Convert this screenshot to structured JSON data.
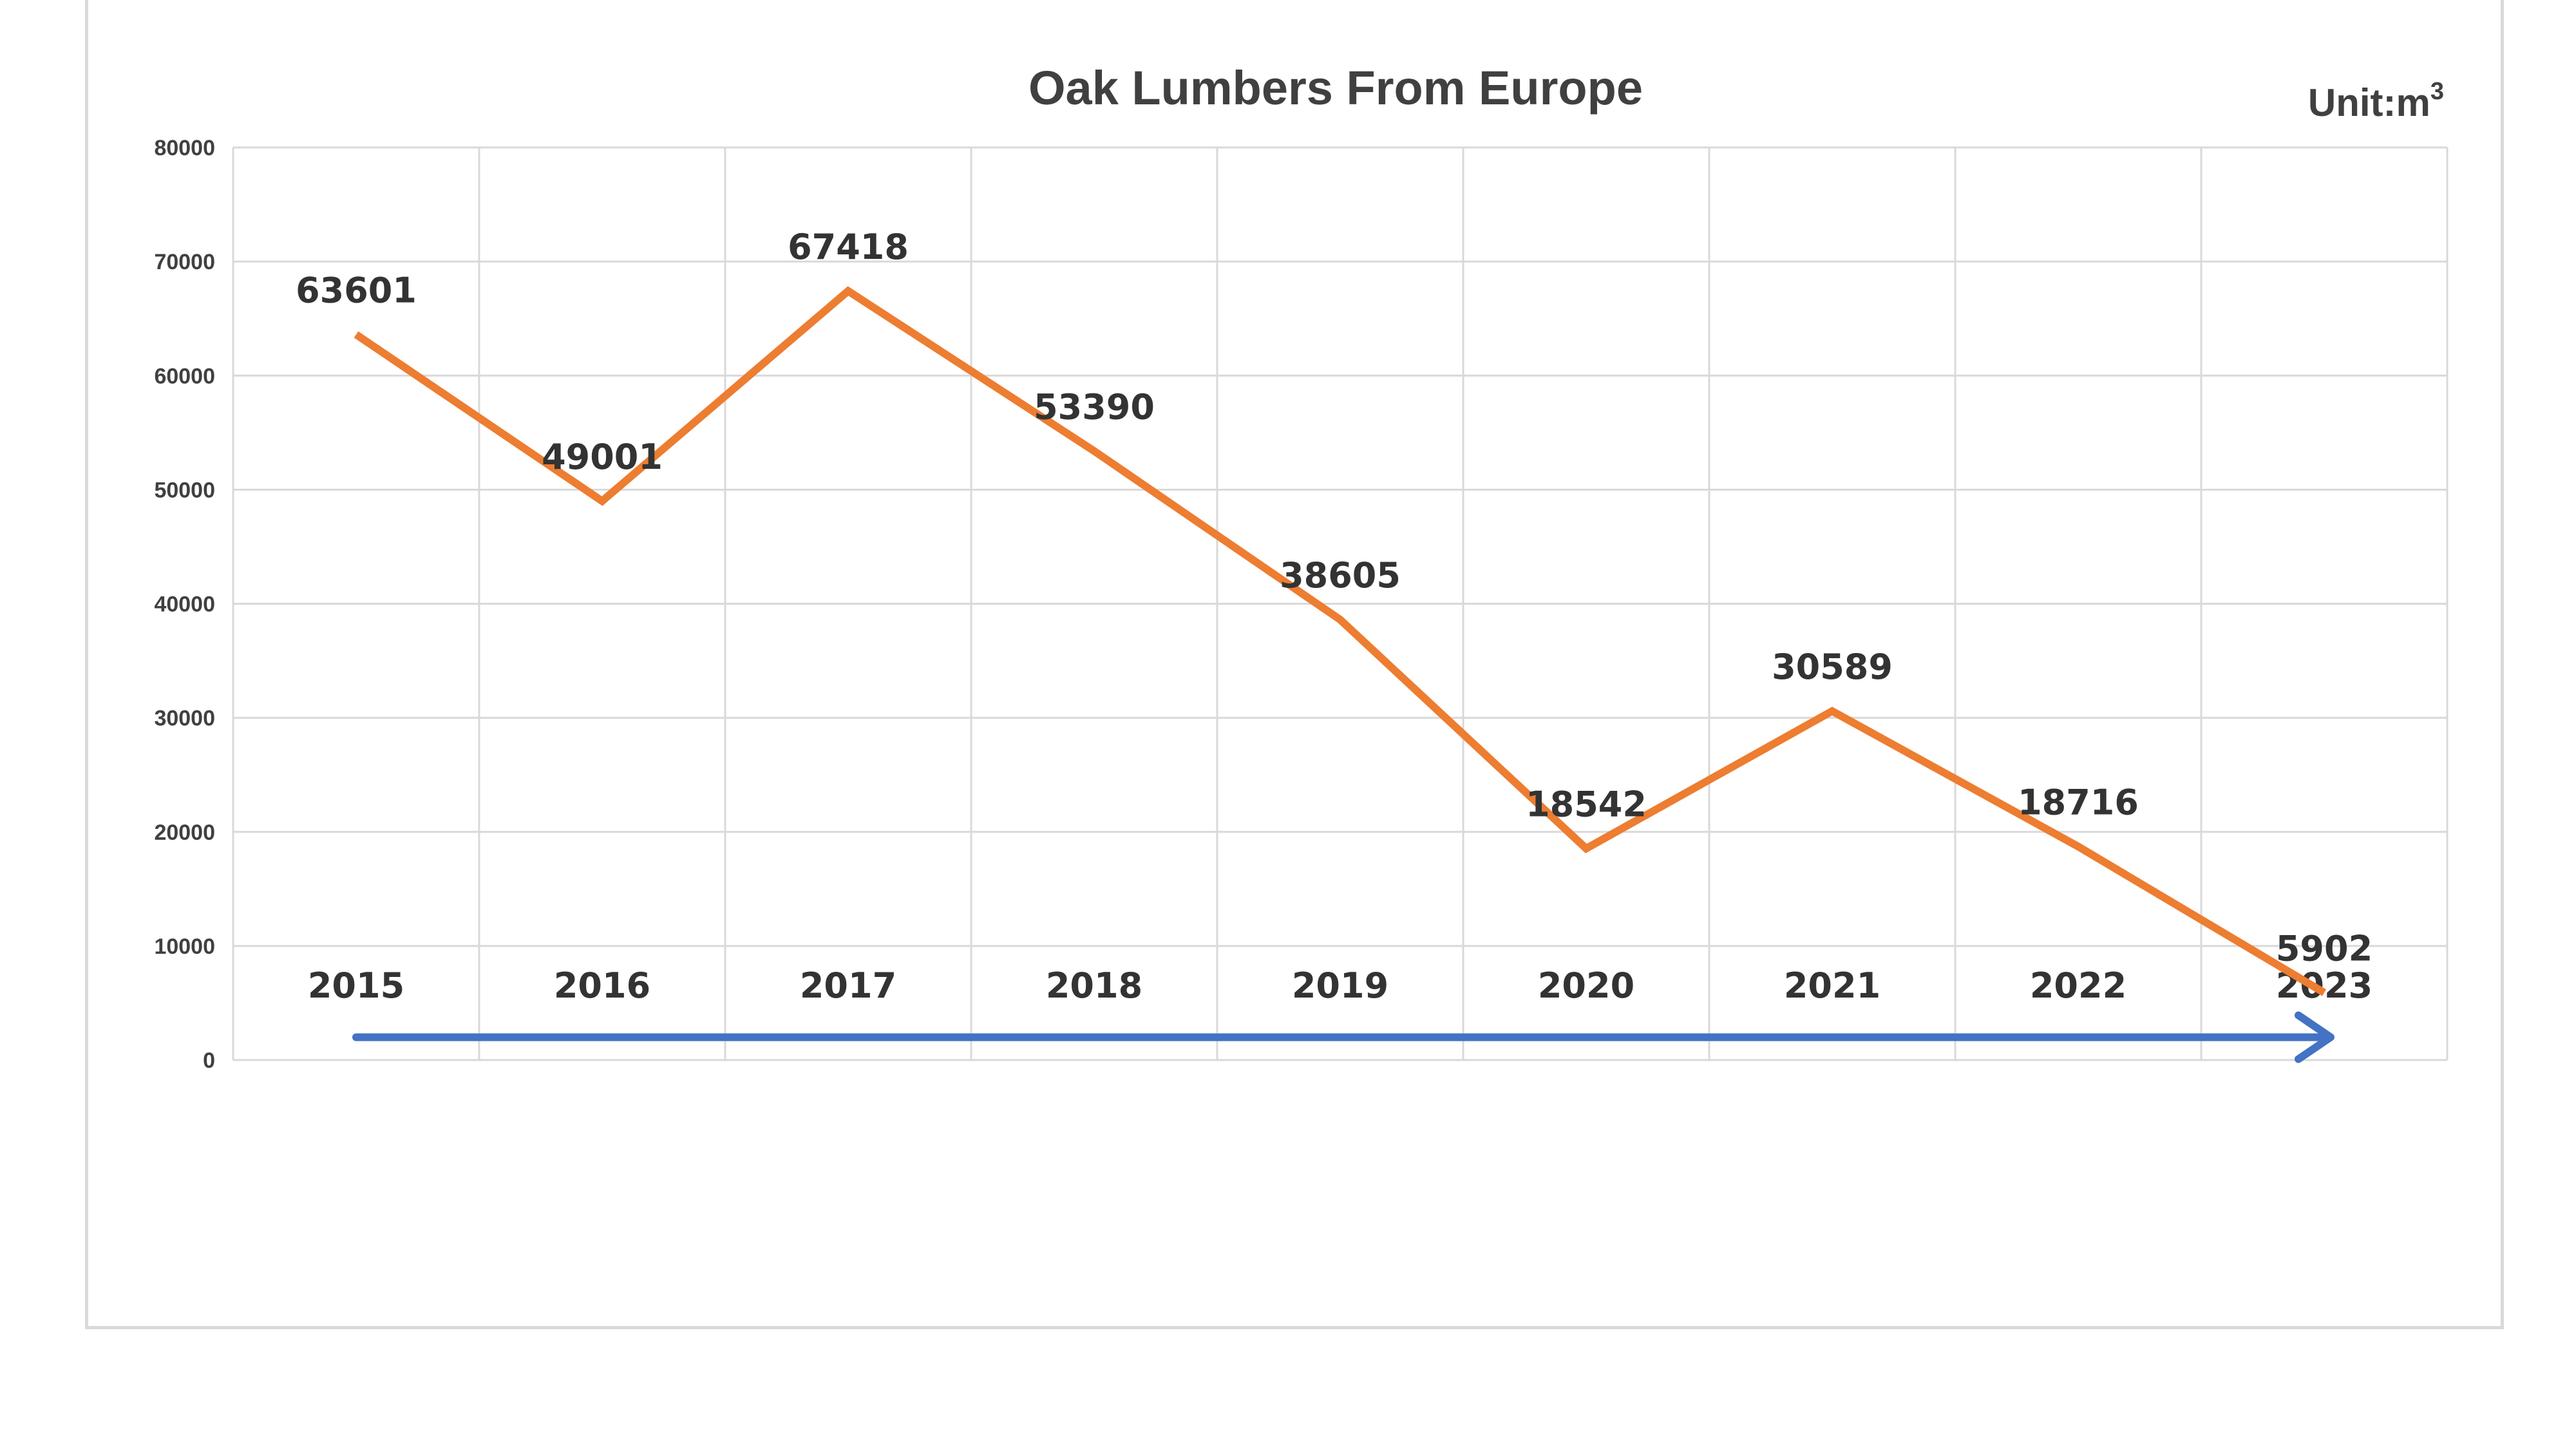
{
  "chart_data": {
    "type": "line",
    "title": "Oak Lumbers From Europe",
    "unit_label": "Unit:m",
    "unit_superscript": "3",
    "categories": [
      "2015",
      "2016",
      "2017",
      "2018",
      "2019",
      "2020",
      "2021",
      "2022",
      "2023"
    ],
    "series": [
      {
        "values": [
          63601,
          49001,
          67418,
          53390,
          38605,
          18542,
          30589,
          18716,
          5902
        ]
      }
    ],
    "data_labels": [
      "63601",
      "49001",
      "67418",
      "53390",
      "38605",
      "18542",
      "30589",
      "18716",
      "5902"
    ],
    "y_ticks": [
      0,
      10000,
      20000,
      30000,
      40000,
      50000,
      60000,
      70000,
      80000
    ],
    "ylim": [
      0,
      80000
    ],
    "grid": true,
    "legend": "none",
    "has_arrow": true,
    "colors": {
      "line": "#ED7D31",
      "arrow": "#4472C4",
      "grid": "#d9d9d9",
      "text": "#404040"
    }
  }
}
